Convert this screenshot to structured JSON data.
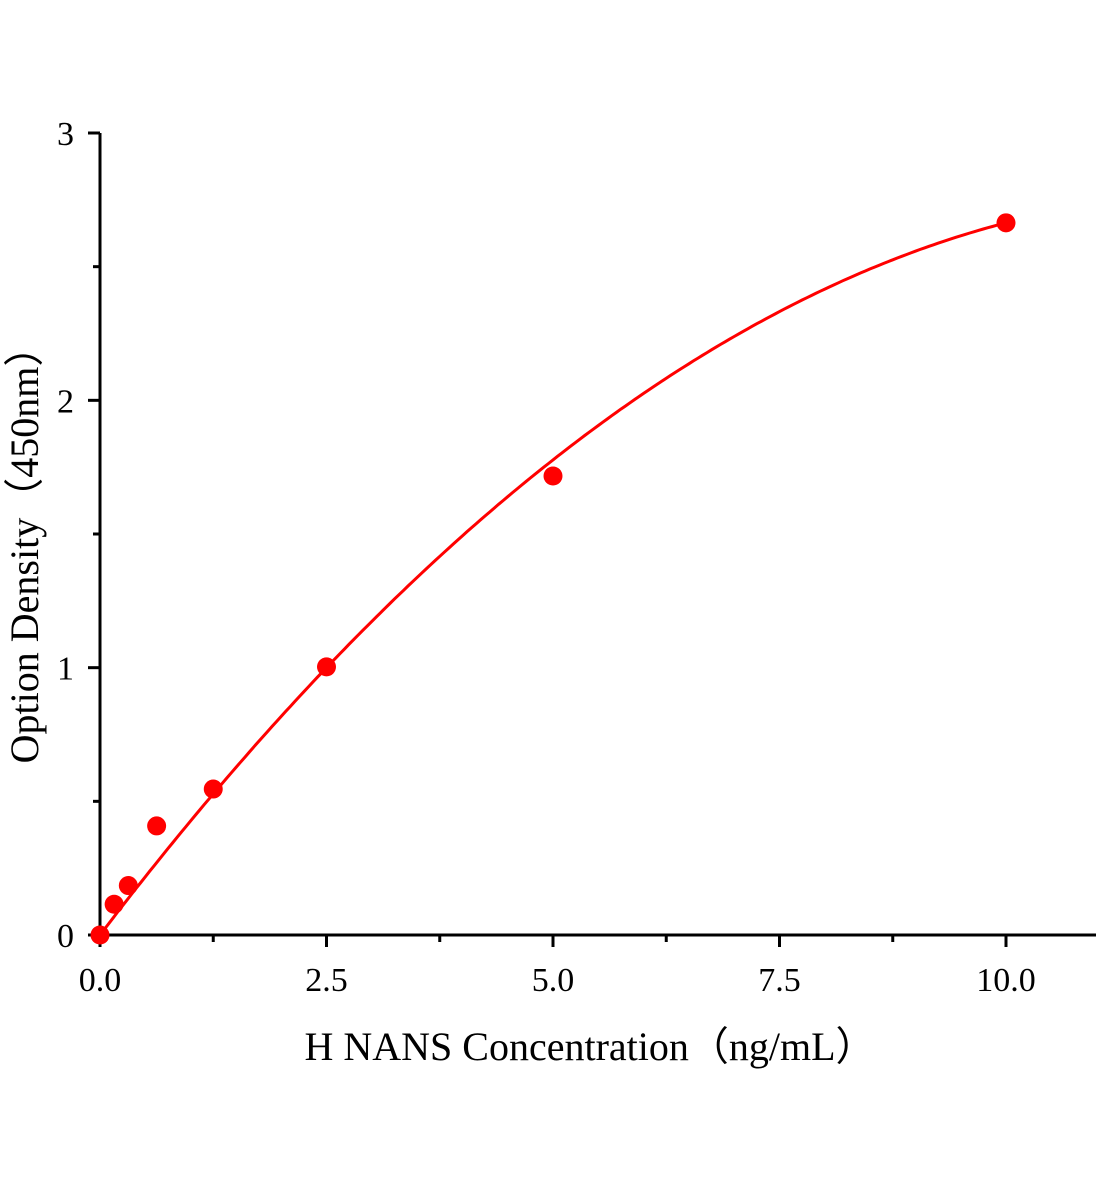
{
  "chart_data": {
    "type": "scatter",
    "title": "",
    "xlabel": "H NANS Concentration（ng/mL）",
    "ylabel": "Option Density（450nm）",
    "xlim": [
      0,
      11
    ],
    "ylim": [
      0,
      3
    ],
    "x_ticks": [
      0.0,
      2.5,
      5.0,
      7.5,
      10.0
    ],
    "x_tick_labels": [
      "0.0",
      "2.5",
      "5.0",
      "7.5",
      "10.0"
    ],
    "y_ticks": [
      0,
      1,
      2,
      3
    ],
    "y_tick_labels": [
      "0",
      "1",
      "2",
      "3"
    ],
    "grid": false,
    "legend": "none",
    "color": "#ff0000",
    "points": [
      {
        "x": 0,
        "y": 0.0
      },
      {
        "x": 0.156,
        "y": 0.115
      },
      {
        "x": 0.3125,
        "y": 0.185
      },
      {
        "x": 0.625,
        "y": 0.408
      },
      {
        "x": 1.25,
        "y": 0.546
      },
      {
        "x": 2.5,
        "y": 1.003
      },
      {
        "x": 5.0,
        "y": 1.717
      },
      {
        "x": 10.0,
        "y": 2.664
      }
    ],
    "fit_curve": true
  }
}
